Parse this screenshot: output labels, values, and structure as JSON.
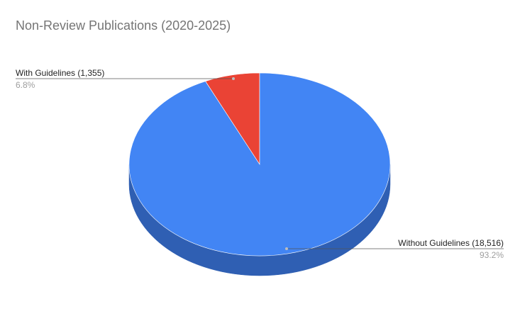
{
  "chart_data": {
    "type": "pie",
    "title": "Non-Review Publications (2020-2025)",
    "three_d": true,
    "legend": "none",
    "slices": [
      {
        "label": "With Guidelines (1,355)",
        "value": 1355,
        "percent_label": "6.8%",
        "color": "#ea4335",
        "side_color": "#b8372b"
      },
      {
        "label": "Without Guidelines (18,516)",
        "value": 18516,
        "percent_label": "93.2%",
        "color": "#4285f4",
        "side_color": "#2f5fb3"
      }
    ]
  }
}
